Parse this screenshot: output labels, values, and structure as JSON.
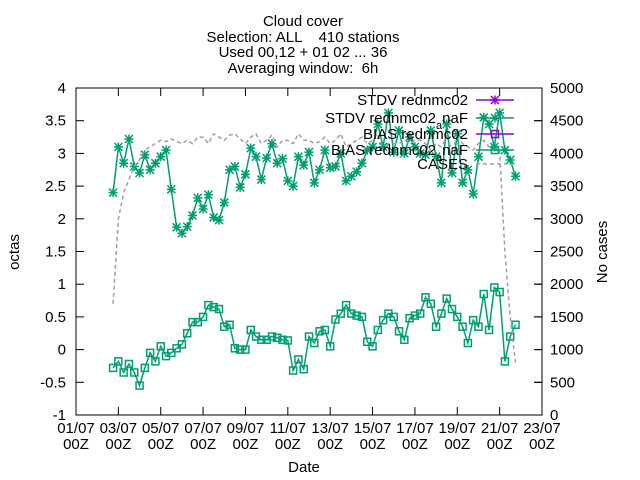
{
  "chart_data": {
    "type": "line",
    "title_lines": [
      "Cloud cover",
      "Selection: ALL    410 stations",
      "Used 00,12 + 01 02 ... 36",
      "Averaging window:  6h"
    ],
    "xlabel": "Date",
    "ylabel": "octas",
    "y2label": "No cases",
    "xlim": [
      0,
      22
    ],
    "ylim": [
      -1,
      4
    ],
    "y2lim": [
      0,
      5000
    ],
    "x_ticks": [
      {
        "x": 0,
        "line1": "01/07",
        "line2": "00Z"
      },
      {
        "x": 2,
        "line1": "03/07",
        "line2": "00Z"
      },
      {
        "x": 4,
        "line1": "05/07",
        "line2": "00Z"
      },
      {
        "x": 6,
        "line1": "07/07",
        "line2": "00Z"
      },
      {
        "x": 8,
        "line1": "09/07",
        "line2": "00Z"
      },
      {
        "x": 10,
        "line1": "11/07",
        "line2": "00Z"
      },
      {
        "x": 12,
        "line1": "13/07",
        "line2": "00Z"
      },
      {
        "x": 14,
        "line1": "15/07",
        "line2": "00Z"
      },
      {
        "x": 16,
        "line1": "17/07",
        "line2": "00Z"
      },
      {
        "x": 18,
        "line1": "19/07",
        "line2": "00Z"
      },
      {
        "x": 20,
        "line1": "21/07",
        "line2": "00Z"
      },
      {
        "x": 22,
        "line1": "23/07",
        "line2": "00Z"
      }
    ],
    "y_ticks": [
      "-1",
      "-0.5",
      "0",
      "0.5",
      "1",
      "1.5",
      "2",
      "2.5",
      "3",
      "3.5",
      "4"
    ],
    "y2_ticks": [
      "0",
      "500",
      "1000",
      "1500",
      "2000",
      "2500",
      "3000",
      "3500",
      "4000",
      "4500",
      "5000"
    ],
    "legend_placement": "top-right",
    "grid": false,
    "series": [
      {
        "name": "STDV rednmc02",
        "axis": "y",
        "color": "#9400D3",
        "marker": "x",
        "x": [],
        "values": []
      },
      {
        "name": "STDV rednmc02_{a}naF",
        "axis": "y",
        "color": "#009E73",
        "marker": "x",
        "x": [
          1.75,
          2.0,
          2.25,
          2.5,
          2.75,
          3.0,
          3.25,
          3.5,
          3.75,
          4.0,
          4.25,
          4.5,
          4.75,
          5.0,
          5.25,
          5.5,
          5.75,
          6.0,
          6.25,
          6.5,
          6.75,
          7.0,
          7.25,
          7.5,
          7.75,
          8.0,
          8.25,
          8.5,
          8.75,
          9.0,
          9.25,
          9.5,
          9.75,
          10.0,
          10.25,
          10.5,
          10.75,
          11.0,
          11.25,
          11.5,
          11.75,
          12.0,
          12.25,
          12.5,
          12.75,
          13.0,
          13.25,
          13.5,
          13.75,
          14.0,
          14.25,
          14.5,
          14.75,
          15.0,
          15.25,
          15.5,
          15.75,
          16.0,
          16.25,
          16.5,
          16.75,
          17.0,
          17.25,
          17.5,
          17.75,
          18.0,
          18.25,
          18.5,
          18.75,
          19.0,
          19.25,
          19.5,
          19.75,
          20.0,
          20.25,
          20.5,
          20.75
        ],
        "values": [
          2.4,
          3.1,
          2.85,
          3.22,
          2.8,
          2.7,
          2.98,
          2.75,
          2.85,
          2.95,
          3.05,
          2.45,
          1.87,
          1.78,
          1.88,
          2.05,
          2.32,
          2.15,
          2.37,
          2.02,
          1.98,
          2.25,
          2.75,
          2.8,
          2.48,
          2.68,
          3.08,
          2.95,
          2.6,
          2.93,
          3.15,
          2.85,
          2.92,
          2.58,
          2.5,
          2.95,
          2.82,
          3.02,
          2.55,
          2.75,
          3.05,
          2.78,
          2.8,
          3.0,
          2.58,
          2.65,
          2.72,
          2.85,
          3.05,
          3.1,
          3.45,
          3.1,
          3.62,
          3.02,
          3.35,
          3.0,
          3.25,
          3.1,
          3.0,
          2.98,
          3.35,
          2.95,
          2.55,
          3.45,
          2.7,
          3.3,
          2.55,
          2.75,
          2.38,
          2.95,
          3.55,
          3.45,
          3.1,
          3.62,
          3.05,
          2.9,
          2.65
        ]
      },
      {
        "name": "BIAS rednmc02",
        "axis": "y",
        "color": "#9400D3",
        "marker": "square",
        "x": [],
        "values": []
      },
      {
        "name": "BIAS rednmc02_{a}naF",
        "axis": "y",
        "color": "#009E73",
        "marker": "square",
        "x": [
          1.75,
          2.0,
          2.25,
          2.5,
          2.75,
          3.0,
          3.25,
          3.5,
          3.75,
          4.0,
          4.25,
          4.5,
          4.75,
          5.0,
          5.25,
          5.5,
          5.75,
          6.0,
          6.25,
          6.5,
          6.75,
          7.0,
          7.25,
          7.5,
          7.75,
          8.0,
          8.25,
          8.5,
          8.75,
          9.0,
          9.25,
          9.5,
          9.75,
          10.0,
          10.25,
          10.5,
          10.75,
          11.0,
          11.25,
          11.5,
          11.75,
          12.0,
          12.25,
          12.5,
          12.75,
          13.0,
          13.25,
          13.5,
          13.75,
          14.0,
          14.25,
          14.5,
          14.75,
          15.0,
          15.25,
          15.5,
          15.75,
          16.0,
          16.25,
          16.5,
          16.75,
          17.0,
          17.25,
          17.5,
          17.75,
          18.0,
          18.25,
          18.5,
          18.75,
          19.0,
          19.25,
          19.5,
          19.75,
          20.0,
          20.25,
          20.5,
          20.75
        ],
        "values": [
          -0.28,
          -0.18,
          -0.35,
          -0.22,
          -0.35,
          -0.55,
          -0.28,
          -0.05,
          -0.18,
          0.05,
          -0.1,
          -0.05,
          0.02,
          0.08,
          0.25,
          0.42,
          0.42,
          0.5,
          0.68,
          0.65,
          0.62,
          0.35,
          0.38,
          0.02,
          0.0,
          0.0,
          0.3,
          0.2,
          0.15,
          0.15,
          0.2,
          0.18,
          0.15,
          0.14,
          -0.32,
          -0.15,
          -0.3,
          0.2,
          0.1,
          0.28,
          0.3,
          0.05,
          0.46,
          0.55,
          0.68,
          0.55,
          0.52,
          0.5,
          0.12,
          0.05,
          0.3,
          0.45,
          0.55,
          0.5,
          0.28,
          0.15,
          0.48,
          0.52,
          0.55,
          0.8,
          0.7,
          0.35,
          0.55,
          0.78,
          0.62,
          0.5,
          0.35,
          0.1,
          0.45,
          0.35,
          0.85,
          0.3,
          0.95,
          0.88,
          -0.18,
          0.2,
          0.38
        ]
      },
      {
        "name": "CASES",
        "axis": "y2",
        "color": "#a0a0a0",
        "marker": "none",
        "dashed": true,
        "x": [
          1.75,
          2.0,
          2.25,
          2.5,
          2.75,
          3.0,
          3.25,
          3.5,
          3.75,
          4.0,
          4.25,
          4.5,
          4.75,
          5.0,
          5.25,
          5.5,
          5.75,
          6.0,
          6.25,
          6.5,
          6.75,
          7.0,
          7.25,
          7.5,
          7.75,
          8.0,
          8.25,
          8.5,
          8.75,
          9.0,
          9.25,
          9.5,
          9.75,
          10.0,
          10.25,
          10.5,
          10.75,
          11.0,
          11.25,
          11.5,
          11.75,
          12.0,
          12.25,
          12.5,
          12.75,
          13.0,
          13.25,
          13.5,
          13.75,
          14.0,
          14.25,
          14.5,
          14.75,
          15.0,
          15.25,
          15.5,
          15.75,
          16.0,
          16.25,
          16.5,
          16.75,
          17.0,
          17.25,
          17.5,
          17.75,
          18.0,
          18.25,
          18.5,
          18.75,
          19.0,
          19.25,
          19.5,
          19.75,
          20.0,
          20.25,
          20.5,
          20.75
        ],
        "values": [
          1700,
          3000,
          3400,
          3600,
          3800,
          3900,
          4050,
          4100,
          4150,
          4200,
          4180,
          4220,
          4180,
          4150,
          4200,
          4150,
          4250,
          4250,
          4150,
          4300,
          4250,
          4200,
          4280,
          4300,
          4220,
          4150,
          4250,
          4300,
          4150,
          4200,
          4280,
          4100,
          4200,
          4200,
          4150,
          4300,
          4200,
          4200,
          4150,
          4180,
          4250,
          4150,
          4200,
          4300,
          4100,
          4150,
          4200,
          4250,
          4150,
          4200,
          4300,
          4050,
          4150,
          4150,
          4150,
          4200,
          4150,
          4200,
          4200,
          4150,
          4050,
          4150,
          4100,
          4250,
          4050,
          4250,
          4150,
          4100,
          4050,
          4150,
          4200,
          4100,
          4050,
          4050,
          2500,
          1500,
          800
        ]
      }
    ]
  }
}
